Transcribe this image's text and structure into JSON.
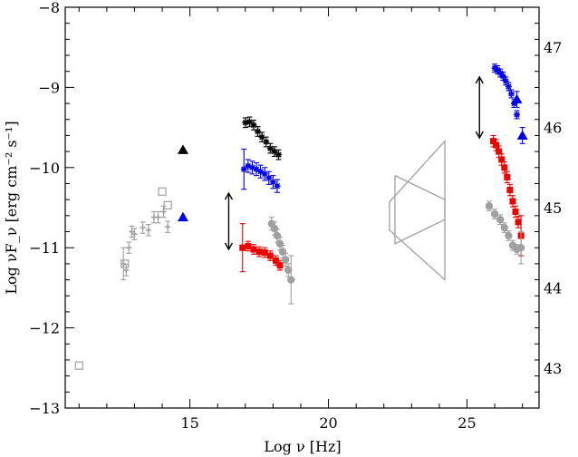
{
  "chart_data": {
    "type": "scatter",
    "xlabel": "Log ν [Hz]",
    "ylabel": "Log νF_ν [erg cm⁻² s⁻¹]",
    "xlim": [
      10.5,
      27.6
    ],
    "ylim": [
      -13,
      -8
    ],
    "y2lim": [
      42.5,
      47.5
    ],
    "x_ticks": [
      15,
      20,
      25
    ],
    "y_ticks": [
      -13,
      -12,
      -11,
      -10,
      -9,
      -8
    ],
    "y2_ticks": [
      43,
      44,
      45,
      46,
      47
    ],
    "y_tick_labels": [
      "−13",
      "−12",
      "−11",
      "−10",
      "−9",
      "−8"
    ],
    "colors": {
      "black": "#000000",
      "blue": "#0000ee",
      "red": "#ee0000",
      "gray": "#a0a0a0"
    },
    "series": [
      {
        "color": "black",
        "marker": "star",
        "points": [
          [
            17.0,
            -9.44
          ],
          [
            17.15,
            -9.43
          ],
          [
            17.3,
            -9.47
          ],
          [
            17.45,
            -9.55
          ],
          [
            17.6,
            -9.62
          ],
          [
            17.75,
            -9.68
          ],
          [
            17.9,
            -9.76
          ],
          [
            18.05,
            -9.8
          ],
          [
            18.2,
            -9.84
          ]
        ],
        "yerr": 0.06
      },
      {
        "color": "blue",
        "marker": "star",
        "points": [
          [
            16.95,
            -10.02
          ],
          [
            17.1,
            -9.98
          ],
          [
            17.25,
            -10.0
          ],
          [
            17.4,
            -10.02
          ],
          [
            17.55,
            -10.05
          ],
          [
            17.7,
            -10.08
          ],
          [
            17.85,
            -10.13
          ],
          [
            18.0,
            -10.18
          ],
          [
            18.15,
            -10.23
          ]
        ],
        "yerr": 0.08,
        "first_yerr": 0.25
      },
      {
        "color": "red",
        "marker": "square",
        "points": [
          [
            16.9,
            -11.0
          ],
          [
            17.1,
            -10.98
          ],
          [
            17.3,
            -11.02
          ],
          [
            17.5,
            -11.05
          ],
          [
            17.7,
            -11.06
          ],
          [
            17.9,
            -11.1
          ],
          [
            18.1,
            -11.16
          ],
          [
            18.25,
            -11.22
          ]
        ],
        "yerr": 0.06,
        "first_yerr": 0.3
      },
      {
        "color": "gray",
        "marker": "circle",
        "points": [
          [
            17.95,
            -10.7
          ],
          [
            18.05,
            -10.76
          ],
          [
            18.15,
            -10.85
          ],
          [
            18.25,
            -10.95
          ],
          [
            18.35,
            -11.05
          ],
          [
            18.45,
            -11.15
          ],
          [
            18.55,
            -11.28
          ],
          [
            18.65,
            -11.4
          ]
        ],
        "yerr": 0.08,
        "last_yerr": 0.3
      },
      {
        "color": "gray",
        "marker": "cross",
        "points": [
          [
            12.6,
            -11.2
          ],
          [
            12.7,
            -11.28
          ],
          [
            12.8,
            -11.0
          ],
          [
            12.9,
            -10.8
          ],
          [
            13.0,
            -10.83
          ],
          [
            13.3,
            -10.75
          ],
          [
            13.5,
            -10.78
          ],
          [
            13.7,
            -10.62
          ],
          [
            13.85,
            -10.62
          ],
          [
            14.05,
            -10.55
          ],
          [
            14.2,
            -10.74
          ]
        ],
        "yerr": 0.07,
        "first_yerr": 0.2
      },
      {
        "color": "gray",
        "marker": "open-square",
        "points": [
          [
            11.0,
            -12.47
          ],
          [
            14.0,
            -10.3
          ],
          [
            14.2,
            -10.47
          ],
          [
            12.65,
            -11.2
          ]
        ]
      },
      {
        "color": "blue",
        "marker": "star",
        "points": [
          [
            26.0,
            -8.76
          ],
          [
            26.1,
            -8.78
          ],
          [
            26.2,
            -8.82
          ],
          [
            26.3,
            -8.86
          ],
          [
            26.4,
            -8.92
          ],
          [
            26.5,
            -8.99
          ],
          [
            26.6,
            -9.08
          ],
          [
            26.7,
            -9.2
          ],
          [
            26.8,
            -9.34
          ]
        ],
        "yerr": 0.05
      },
      {
        "color": "blue",
        "marker": "triangle",
        "points": [
          [
            26.8,
            -9.15
          ],
          [
            27.0,
            -9.6
          ]
        ],
        "yerr": 0.1
      },
      {
        "color": "red",
        "marker": "square",
        "points": [
          [
            25.95,
            -9.67
          ],
          [
            26.05,
            -9.72
          ],
          [
            26.15,
            -9.8
          ],
          [
            26.25,
            -9.9
          ],
          [
            26.35,
            -10.0
          ],
          [
            26.45,
            -10.12
          ],
          [
            26.55,
            -10.28
          ],
          [
            26.65,
            -10.42
          ],
          [
            26.75,
            -10.55
          ],
          [
            26.85,
            -10.68
          ],
          [
            26.95,
            -10.85
          ]
        ],
        "yerr": 0.07,
        "last_yerr": 0.25
      },
      {
        "color": "gray",
        "marker": "circle",
        "points": [
          [
            25.8,
            -10.48
          ],
          [
            26.0,
            -10.58
          ],
          [
            26.2,
            -10.65
          ],
          [
            26.35,
            -10.75
          ],
          [
            26.5,
            -10.85
          ],
          [
            26.65,
            -10.97
          ],
          [
            26.8,
            -11.02
          ],
          [
            26.95,
            -11.0
          ]
        ],
        "yerr": 0.06,
        "last_yerr": 0.2
      },
      {
        "color": "black",
        "marker": "triangle",
        "points": [
          [
            14.75,
            -9.78
          ]
        ]
      },
      {
        "color": "blue",
        "marker": "triangle",
        "points": [
          [
            14.75,
            -10.62
          ]
        ]
      }
    ],
    "arrows": [
      {
        "x": 16.4,
        "y1": -10.32,
        "y2": -11.02
      },
      {
        "x": 25.45,
        "y1": -8.87,
        "y2": -9.63
      }
    ],
    "bowtie": {
      "color": "gray",
      "polylines": [
        [
          [
            22.2,
            -10.43
          ],
          [
            24.2,
            -9.67
          ],
          [
            24.2,
            -11.4
          ],
          [
            22.2,
            -10.78
          ],
          [
            22.2,
            -10.43
          ]
        ],
        [
          [
            22.4,
            -10.1
          ],
          [
            24.2,
            -10.4
          ],
          [
            24.2,
            -10.65
          ],
          [
            22.4,
            -10.95
          ],
          [
            22.4,
            -10.1
          ]
        ]
      ]
    }
  }
}
